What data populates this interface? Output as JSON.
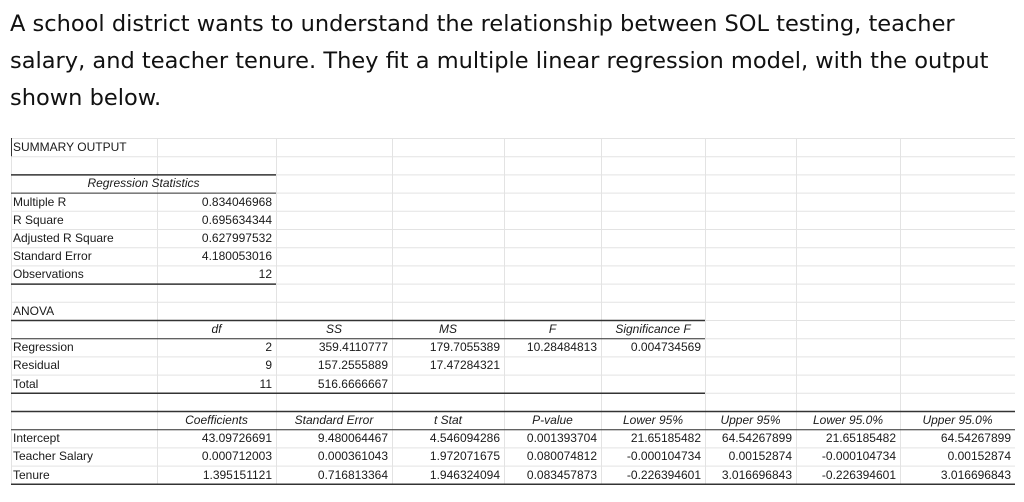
{
  "question": "A school district wants to understand the relationship between SOL testing, teacher salary, and teacher tenure. They fit a multiple linear regression model, with the output shown below.",
  "summary_title": "SUMMARY OUTPUT",
  "regression_statistics": {
    "header": "Regression Statistics",
    "rows": [
      {
        "label": "Multiple R",
        "value": "0.834046968"
      },
      {
        "label": "R Square",
        "value": "0.695634344"
      },
      {
        "label": "Adjusted R Square",
        "value": "0.627997532"
      },
      {
        "label": "Standard Error",
        "value": "4.180053016"
      },
      {
        "label": "Observations",
        "value": "12"
      }
    ]
  },
  "anova": {
    "title": "ANOVA",
    "headers": [
      "df",
      "SS",
      "MS",
      "F",
      "Significance F"
    ],
    "rows": [
      {
        "label": "Regression",
        "df": "2",
        "ss": "359.4110777",
        "ms": "179.7055389",
        "f": "10.28484813",
        "sig": "0.004734569"
      },
      {
        "label": "Residual",
        "df": "9",
        "ss": "157.2555889",
        "ms": "17.47284321",
        "f": "",
        "sig": ""
      },
      {
        "label": "Total",
        "df": "11",
        "ss": "516.6666667",
        "ms": "",
        "f": "",
        "sig": ""
      }
    ]
  },
  "coefficients": {
    "headers": [
      "Coefficients",
      "Standard Error",
      "t Stat",
      "P-value",
      "Lower 95%",
      "Upper 95%",
      "Lower 95.0%",
      "Upper 95.0%"
    ],
    "rows": [
      {
        "label": "Intercept",
        "values": [
          "43.09726691",
          "9.480064467",
          "4.546094286",
          "0.001393704",
          "21.65185482",
          "64.54267899",
          "21.65185482",
          "64.54267899"
        ]
      },
      {
        "label": "Teacher Salary",
        "values": [
          "0.000712003",
          "0.000361043",
          "1.972071675",
          "0.080074812",
          "-0.000104734",
          "0.00152874",
          "-0.000104734",
          "0.00152874"
        ]
      },
      {
        "label": "Tenure",
        "values": [
          "1.395151121",
          "0.716813364",
          "1.946324094",
          "0.083457873",
          "-0.226394601",
          "3.016696843",
          "-0.226394601",
          "3.016696843"
        ]
      }
    ]
  }
}
